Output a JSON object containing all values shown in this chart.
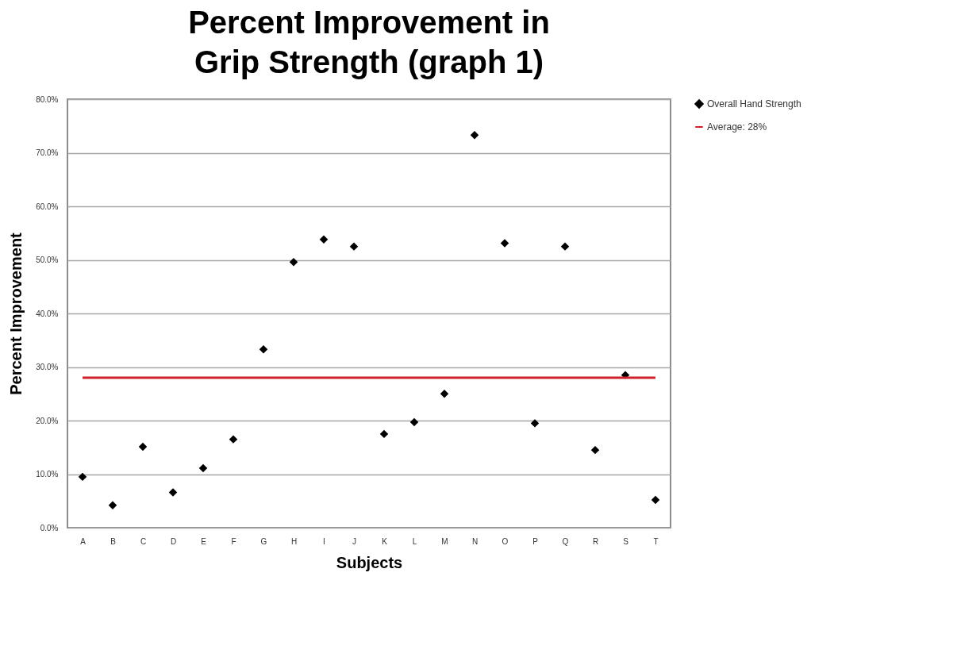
{
  "chart_data": {
    "type": "scatter",
    "title": "Percent Improvement in Grip Strength (graph 1)",
    "xlabel": "Subjects",
    "ylabel": "Percent Improvement",
    "categories": [
      "A",
      "B",
      "C",
      "D",
      "E",
      "F",
      "G",
      "H",
      "I",
      "J",
      "K",
      "L",
      "M",
      "N",
      "O",
      "P",
      "Q",
      "R",
      "S",
      "T"
    ],
    "series": [
      {
        "name": "Overall Hand Strength",
        "color": "#000000",
        "values": [
          9.5,
          4.2,
          15.1,
          6.6,
          11.1,
          16.5,
          33.3,
          49.6,
          53.8,
          52.5,
          17.5,
          19.7,
          25.0,
          73.3,
          53.1,
          19.5,
          52.5,
          14.5,
          28.5,
          5.2
        ]
      },
      {
        "name": "Average: 28%",
        "type": "line",
        "marker": "none",
        "color": "#d0202e",
        "values": [
          28,
          28,
          28,
          28,
          28,
          28,
          28,
          28,
          28,
          28,
          28,
          28,
          28,
          28,
          28,
          28,
          28,
          28,
          28,
          28
        ]
      }
    ],
    "ylim": [
      0,
      80
    ],
    "yticks": [
      {
        "value": 0,
        "label": "0.0%"
      },
      {
        "value": 10,
        "label": "10.0%"
      },
      {
        "value": 20,
        "label": "20.0%"
      },
      {
        "value": 30,
        "label": "30.0%"
      },
      {
        "value": 40,
        "label": "40.0%"
      },
      {
        "value": 50,
        "label": "50.0%"
      },
      {
        "value": 60,
        "label": "60.0%"
      },
      {
        "value": 70,
        "label": "70.0%"
      },
      {
        "value": 80,
        "label": "80.0%"
      }
    ],
    "grid": "y",
    "legend": "right",
    "marker": "diamond"
  }
}
